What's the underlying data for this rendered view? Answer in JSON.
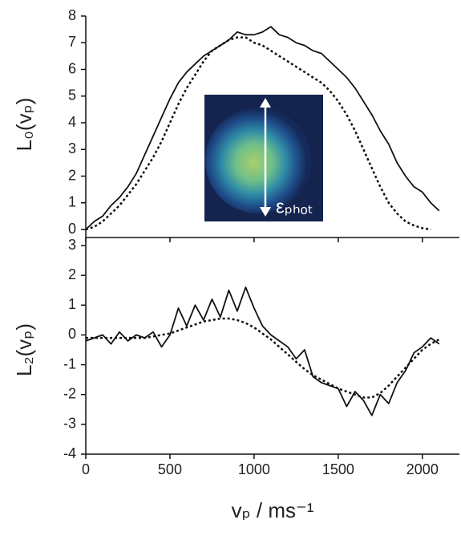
{
  "chart_data": [
    {
      "type": "line",
      "ylabel": "L₀(vₚ)",
      "annotation": "εₚₕₒₜ",
      "x": [
        0,
        50,
        100,
        150,
        200,
        250,
        300,
        350,
        400,
        450,
        500,
        550,
        600,
        650,
        700,
        750,
        800,
        850,
        900,
        950,
        1000,
        1050,
        1100,
        1150,
        1200,
        1250,
        1300,
        1350,
        1400,
        1450,
        1500,
        1550,
        1600,
        1650,
        1700,
        1750,
        1800,
        1850,
        1900,
        1950,
        2000,
        2050,
        2100
      ],
      "series": [
        {
          "style": "solid",
          "color": "#111111",
          "values": [
            0.0,
            0.3,
            0.5,
            0.9,
            1.2,
            1.6,
            2.1,
            2.8,
            3.5,
            4.2,
            4.9,
            5.5,
            5.9,
            6.2,
            6.5,
            6.7,
            6.9,
            7.1,
            7.4,
            7.3,
            7.3,
            7.4,
            7.6,
            7.3,
            7.2,
            7.0,
            6.9,
            6.7,
            6.6,
            6.3,
            6.0,
            5.7,
            5.3,
            4.8,
            4.3,
            3.7,
            3.2,
            2.5,
            2.0,
            1.6,
            1.4,
            1.0,
            0.7
          ]
        },
        {
          "style": "dashed",
          "color": "#111111",
          "values": [
            0.0,
            0.1,
            0.3,
            0.6,
            0.9,
            1.3,
            1.7,
            2.2,
            2.7,
            3.3,
            4.0,
            4.7,
            5.3,
            5.8,
            6.3,
            6.7,
            6.9,
            7.1,
            7.2,
            7.2,
            7.0,
            6.9,
            6.7,
            6.5,
            6.3,
            6.1,
            5.9,
            5.7,
            5.5,
            5.2,
            4.8,
            4.3,
            3.7,
            3.0,
            2.3,
            1.6,
            1.0,
            0.6,
            0.3,
            0.15,
            0.05,
            0.0,
            null
          ]
        }
      ],
      "xlim": [
        0,
        2220
      ],
      "ylim": [
        0,
        8
      ],
      "yticks": [
        0,
        1,
        2,
        3,
        4,
        5,
        6,
        7,
        8
      ]
    },
    {
      "type": "line",
      "ylabel": "L₂(vₚ)",
      "xlabel": "vₚ / ms⁻¹",
      "x": [
        0,
        50,
        100,
        150,
        200,
        250,
        300,
        350,
        400,
        450,
        500,
        550,
        600,
        650,
        700,
        750,
        800,
        850,
        900,
        950,
        1000,
        1050,
        1100,
        1150,
        1200,
        1250,
        1300,
        1350,
        1400,
        1450,
        1500,
        1550,
        1600,
        1650,
        1700,
        1750,
        1800,
        1850,
        1900,
        1950,
        2000,
        2050,
        2100
      ],
      "series": [
        {
          "style": "solid",
          "color": "#111111",
          "values": [
            -0.2,
            -0.1,
            0.0,
            -0.3,
            0.1,
            -0.2,
            0.0,
            -0.1,
            0.1,
            -0.4,
            0.0,
            0.9,
            0.3,
            1.0,
            0.5,
            1.2,
            0.6,
            1.5,
            0.8,
            1.6,
            0.9,
            0.3,
            0.0,
            -0.2,
            -0.4,
            -0.8,
            -0.5,
            -1.4,
            -1.6,
            -1.7,
            -1.8,
            -2.4,
            -1.9,
            -2.2,
            -2.7,
            -2.0,
            -2.3,
            -1.6,
            -1.2,
            -0.6,
            -0.4,
            -0.1,
            -0.3
          ]
        },
        {
          "style": "dashed",
          "color": "#111111",
          "values": [
            -0.1,
            -0.1,
            -0.1,
            -0.1,
            -0.1,
            -0.1,
            -0.1,
            -0.1,
            -0.05,
            0.0,
            0.05,
            0.15,
            0.25,
            0.35,
            0.45,
            0.5,
            0.55,
            0.55,
            0.5,
            0.4,
            0.25,
            0.05,
            -0.15,
            -0.4,
            -0.65,
            -0.9,
            -1.15,
            -1.35,
            -1.5,
            -1.65,
            -1.8,
            -1.9,
            -2.0,
            -2.1,
            -2.1,
            -1.95,
            -1.7,
            -1.4,
            -1.1,
            -0.8,
            -0.5,
            -0.3,
            -0.15
          ]
        }
      ],
      "xlim": [
        0,
        2220
      ],
      "xticks": [
        0,
        500,
        1000,
        1500,
        2000
      ],
      "ylim": [
        -4,
        3
      ],
      "yticks": [
        -4,
        -3,
        -2,
        -1,
        0,
        1,
        2,
        3
      ]
    }
  ]
}
